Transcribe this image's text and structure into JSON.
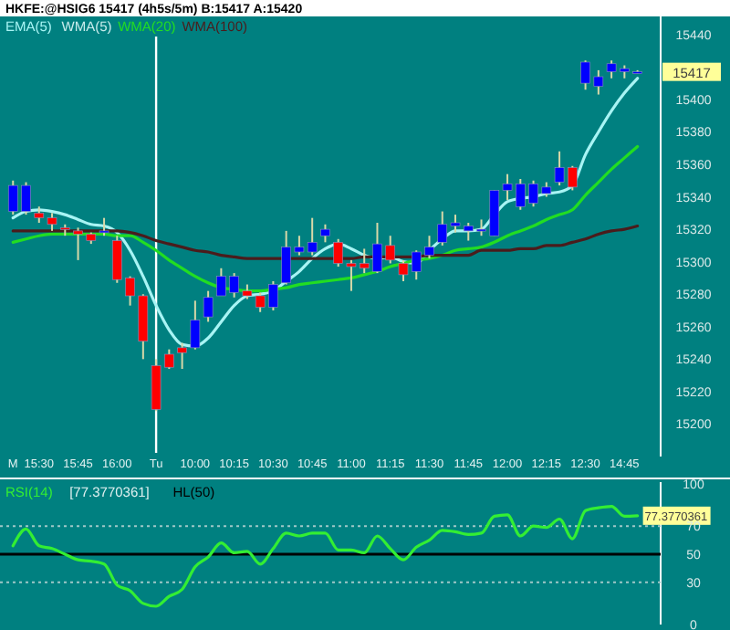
{
  "chart_data": [
    {
      "type": "candlestick",
      "title": "HKFE:@HSIG6  15417 (4h5s/5m)  B:15417 A:15420",
      "legend": "top left",
      "categories": [
        "M",
        null,
        "15:30",
        null,
        null,
        "15:45",
        null,
        null,
        "16:00",
        null,
        null,
        "Tu",
        null,
        null,
        "10:00",
        null,
        null,
        "10:15",
        null,
        null,
        "10:30",
        null,
        null,
        "10:45",
        null,
        null,
        "11:00",
        null,
        null,
        "11:15",
        null,
        null,
        "11:30",
        null,
        null,
        "11:45",
        null,
        null,
        "12:00",
        null,
        null,
        "12:15",
        null,
        null,
        "12:30",
        null,
        null,
        "14:45",
        null
      ],
      "ohlc": [
        [
          15331,
          15350,
          15329,
          15347
        ],
        [
          15331,
          15349,
          15329,
          15347
        ],
        [
          15330,
          15334,
          15324,
          15327
        ],
        [
          15327,
          15330,
          15319,
          15323
        ],
        [
          15321,
          15323,
          15316,
          15320
        ],
        [
          15319,
          15321,
          15301,
          15317
        ],
        [
          15317,
          15318,
          15311,
          15313
        ],
        [
          15318,
          15327,
          15316,
          15319
        ],
        [
          15313,
          15316,
          15287,
          15289
        ],
        [
          15290,
          15291,
          15273,
          15279
        ],
        [
          15279,
          15280,
          15240,
          15251
        ],
        [
          15236,
          15240,
          15208,
          15209
        ],
        [
          15243,
          15246,
          15234,
          15235
        ],
        [
          15247,
          15250,
          15234,
          15244
        ],
        [
          15247,
          15276,
          15246,
          15264
        ],
        [
          15266,
          15282,
          15263,
          15278
        ],
        [
          15279,
          15296,
          15279,
          15291
        ],
        [
          15281,
          15293,
          15278,
          15291
        ],
        [
          15282,
          15286,
          15277,
          15279
        ],
        [
          15279,
          15281,
          15269,
          15272
        ],
        [
          15272,
          15288,
          15270,
          15286
        ],
        [
          15287,
          15319,
          15286,
          15309
        ],
        [
          15306,
          15316,
          15304,
          15309
        ],
        [
          15306,
          15327,
          15304,
          15312
        ],
        [
          15316,
          15323,
          15312,
          15320
        ],
        [
          15312,
          15314,
          15297,
          15299
        ],
        [
          15299,
          15301,
          15282,
          15297
        ],
        [
          15299,
          15308,
          15293,
          15296
        ],
        [
          15294,
          15324,
          15293,
          15311
        ],
        [
          15310,
          15316,
          15299,
          15301
        ],
        [
          15299,
          15301,
          15288,
          15292
        ],
        [
          15294,
          15307,
          15289,
          15306
        ],
        [
          15304,
          15316,
          15302,
          15309
        ],
        [
          15312,
          15331,
          15310,
          15323
        ],
        [
          15322,
          15329,
          15318,
          15324
        ],
        [
          15319,
          15324,
          15313,
          15322
        ],
        [
          15319,
          15326,
          15316,
          15320
        ],
        [
          15316,
          15344,
          15316,
          15344
        ],
        [
          15344,
          15354,
          15338,
          15348
        ],
        [
          15334,
          15351,
          15332,
          15348
        ],
        [
          15336,
          15350,
          15334,
          15348
        ],
        [
          15342,
          15349,
          15340,
          15346
        ],
        [
          15349,
          15368,
          15347,
          15358
        ],
        [
          15358,
          15359,
          15344,
          15346
        ],
        [
          15410,
          15424,
          15406,
          15423
        ],
        [
          15408,
          15418,
          15403,
          15414
        ],
        [
          15417,
          15424,
          15413,
          15422
        ],
        [
          15417,
          15421,
          15413,
          15419
        ],
        [
          15416,
          15418,
          15416,
          15417
        ]
      ],
      "colors": [
        "#0000ff",
        "#0000ff",
        "#ff0000",
        "#ff0000",
        "#ff0000",
        "#ff0000",
        "#ff0000",
        "#0000ff",
        "#ff0000",
        "#ff0000",
        "#ff0000",
        "#ff0000",
        "#ff0000",
        "#ff0000",
        "#0000ff",
        "#0000ff",
        "#0000ff",
        "#0000ff",
        "#ff0000",
        "#ff0000",
        "#0000ff",
        "#0000ff",
        "#0000ff",
        "#0000ff",
        "#0000ff",
        "#ff0000",
        "#ff0000",
        "#ff0000",
        "#0000ff",
        "#ff0000",
        "#ff0000",
        "#0000ff",
        "#0000ff",
        "#0000ff",
        "#0000ff",
        "#0000ff",
        "#0000ff",
        "#0000ff",
        "#0000ff",
        "#0000ff",
        "#0000ff",
        "#0000ff",
        "#0000ff",
        "#ff0000",
        "#0000ff",
        "#0000ff",
        "#0000ff",
        "#0000ff",
        "#0000ff"
      ],
      "series": [
        {
          "name": "EMA(5)",
          "type": "line",
          "color": "#a8f4f4",
          "values": [
            15327,
            15331,
            15332,
            15331,
            15329,
            15326,
            15323,
            15322,
            15318,
            15307,
            15291,
            15273,
            15258,
            15249,
            15248,
            15253,
            15263,
            15273,
            15279,
            15280,
            15282,
            15288,
            15294,
            15302,
            15308,
            15311,
            15308,
            15304,
            15302,
            15303,
            15300,
            15299,
            15307,
            15314,
            15319,
            15319,
            15320,
            15329,
            15337,
            15339,
            15340,
            15342,
            15343,
            15347,
            15366,
            15380,
            15393,
            15404,
            15413
          ]
        },
        {
          "name": "WMA(5)",
          "type": "line",
          "color": "#c8ecec",
          "values": [
            null,
            null,
            null,
            null,
            null,
            null,
            null,
            null,
            null,
            null,
            null,
            null,
            null,
            null,
            null,
            null,
            null,
            null,
            null,
            null,
            null,
            null,
            null,
            null,
            null,
            null,
            null,
            null,
            null,
            null,
            null,
            null,
            null,
            null,
            null,
            null,
            null,
            null,
            null,
            null,
            null,
            null,
            null,
            null,
            null,
            null,
            null,
            null,
            null
          ]
        },
        {
          "name": "WMA(20)",
          "type": "line",
          "color": "#22dd22",
          "values": [
            15312,
            15314,
            15316,
            15317,
            15317,
            15317,
            15317,
            15317,
            15316,
            15316,
            15312,
            15307,
            15301,
            15296,
            15291,
            15287,
            15284,
            15283,
            15282,
            15282,
            15283,
            15284,
            15286,
            15287,
            15288,
            15289,
            15290,
            15292,
            15294,
            15297,
            15299,
            15301,
            15302,
            15304,
            15307,
            15308,
            15309,
            15312,
            15316,
            15319,
            15322,
            15326,
            15329,
            15332,
            15341,
            15349,
            15357,
            15364,
            15371
          ]
        },
        {
          "name": "WMA(100)",
          "type": "line",
          "color": "#4a1c1c",
          "values": [
            15319,
            15319,
            15319,
            15319,
            15319,
            15319,
            15319,
            15319,
            15319,
            15318,
            15316,
            15313,
            15311,
            15309,
            15307,
            15306,
            15304,
            15303,
            15302,
            15302,
            15302,
            15302,
            15302,
            15302,
            15302,
            15302,
            15302,
            15303,
            15303,
            15303,
            15303,
            15303,
            15304,
            15304,
            15304,
            15304,
            15307,
            15307,
            15307,
            15308,
            15308,
            15310,
            15310,
            15312,
            15314,
            15317,
            15319,
            15320,
            15322
          ]
        }
      ],
      "ylim": [
        15180,
        15450
      ],
      "yticks": [
        15200,
        15220,
        15240,
        15260,
        15280,
        15300,
        15320,
        15340,
        15360,
        15380,
        15400,
        15440
      ],
      "ref_lines": [
        {
          "axis": "x",
          "value": "Tu",
          "color": "#ffffff"
        }
      ],
      "value_labels": [
        null,
        null,
        null,
        null,
        null,
        null,
        null,
        null,
        null,
        null,
        null,
        null,
        null,
        null,
        null,
        null,
        null,
        null,
        null,
        null,
        null,
        null,
        null,
        null,
        null,
        null,
        null,
        null,
        null,
        null,
        null,
        null,
        null,
        null,
        null,
        null,
        null,
        null,
        null,
        null,
        null,
        null,
        null,
        null,
        null,
        null,
        null,
        null,
        "15417"
      ]
    },
    {
      "type": "line",
      "legend": "top left",
      "tick_labels": "y",
      "categories": [
        null,
        null,
        null,
        null,
        null,
        null,
        null,
        null,
        null,
        null,
        null,
        null,
        null,
        null,
        null,
        null,
        null,
        null,
        null,
        null,
        null,
        null,
        null,
        null,
        null,
        null,
        null,
        null,
        null,
        null,
        null,
        null,
        null,
        null,
        null,
        null,
        null,
        null,
        null,
        null,
        null,
        null,
        null,
        null,
        null,
        null,
        null,
        null,
        null
      ],
      "series": [
        {
          "name": "RSI(14)",
          "color": "#33ee33",
          "values": [
            56,
            68,
            56,
            54,
            50,
            46,
            45,
            43,
            28,
            24,
            15,
            13,
            20,
            25,
            41,
            48,
            58,
            51,
            52,
            43,
            54,
            65,
            63,
            65,
            65,
            53,
            53,
            51,
            63,
            54,
            46,
            55,
            60,
            67,
            66,
            64,
            65,
            77,
            78,
            63,
            70,
            69,
            75,
            61,
            81,
            83,
            84,
            77,
            77.3770361
          ],
          "value_labels": [
            null,
            null,
            null,
            null,
            null,
            null,
            null,
            null,
            null,
            null,
            null,
            null,
            null,
            null,
            null,
            null,
            null,
            null,
            null,
            null,
            null,
            null,
            null,
            null,
            null,
            null,
            null,
            null,
            null,
            null,
            null,
            null,
            null,
            null,
            null,
            null,
            null,
            null,
            null,
            null,
            null,
            null,
            null,
            null,
            null,
            null,
            null,
            null,
            "77.3770361"
          ]
        }
      ],
      "ylim": [
        0,
        100
      ],
      "yticks": [
        0,
        30,
        50,
        70,
        100
      ],
      "ref_lines": [
        {
          "axis": "y",
          "value": 70,
          "color": "#a0c8c8",
          "line_style": "dotted"
        },
        {
          "axis": "y",
          "value": 30,
          "color": "#a0c8c8",
          "line_style": "dotted"
        },
        {
          "axis": "y",
          "value": 50,
          "color": "#000000",
          "line_style": "solid",
          "label": "HL(50)"
        }
      ],
      "annotations": [
        "[77.3770361]"
      ]
    }
  ]
}
